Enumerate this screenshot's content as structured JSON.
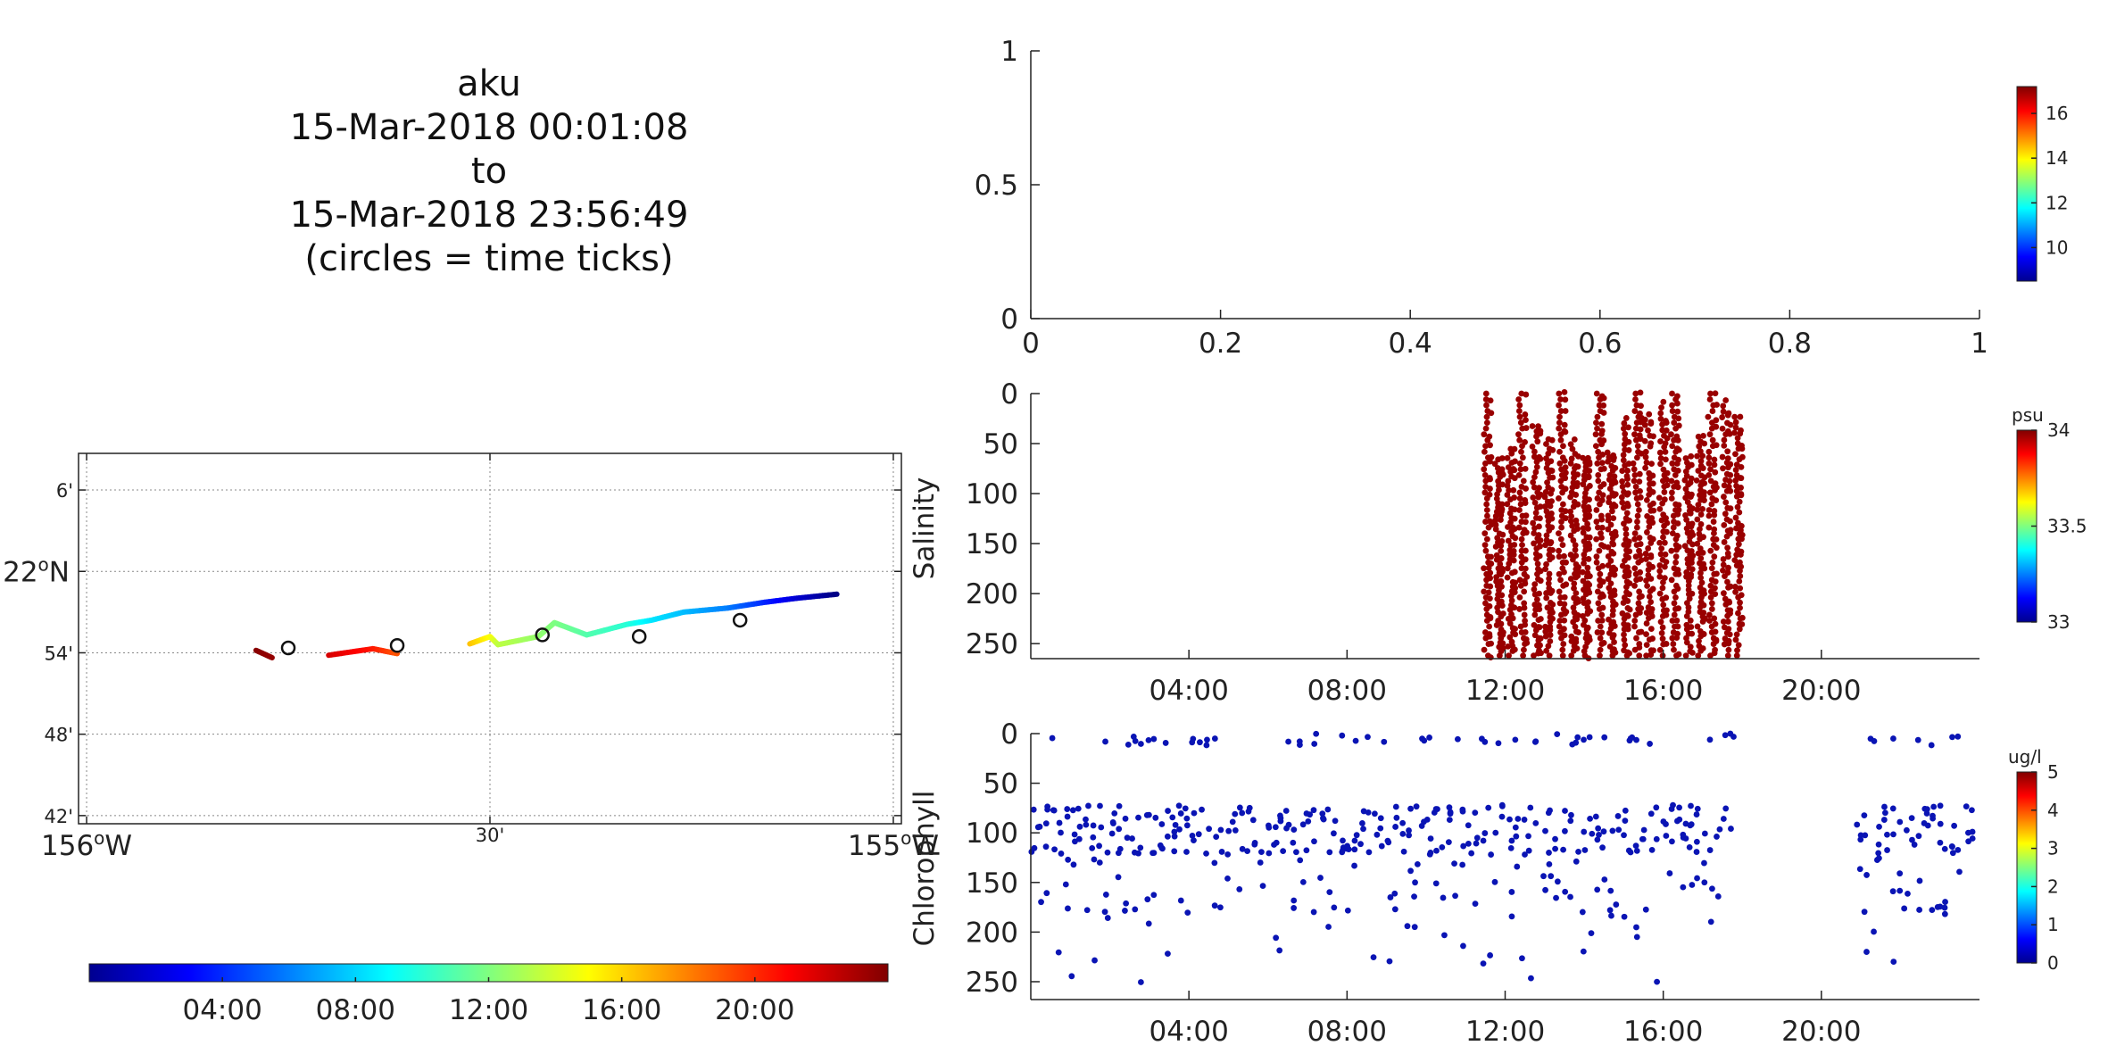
{
  "title": {
    "lines": [
      "aku",
      "15-Mar-2018 00:01:08",
      "to",
      "15-Mar-2018 23:56:49",
      "(circles = time ticks)"
    ]
  },
  "map": {
    "lat_ticks": [
      {
        "value": 22.1,
        "label": "6'",
        "major": false
      },
      {
        "value": 22.0,
        "label": "22°N",
        "major": true
      },
      {
        "value": 21.9,
        "label": "54'",
        "major": false
      },
      {
        "value": 21.8,
        "label": "48'",
        "major": false
      },
      {
        "value": 21.7,
        "label": "42'",
        "major": false
      }
    ],
    "lon_ticks": [
      {
        "value": -156.0,
        "label": "156°W",
        "major": true
      },
      {
        "value": -155.5,
        "label": "30'",
        "major": false
      },
      {
        "value": -155.0,
        "label": "155°W",
        "major": true
      }
    ],
    "xlim": [
      -156.01,
      -154.99
    ],
    "ylim": [
      21.69,
      22.145
    ],
    "track": [
      {
        "lon": -155.79,
        "lat": 21.903,
        "hour": 23.8
      },
      {
        "lon": -155.77,
        "lat": 21.894,
        "hour": 23.5
      },
      {
        "lon": -155.7,
        "lat": 21.897,
        "hour": 22.0
      },
      {
        "lon": -155.645,
        "lat": 21.905,
        "hour": 20.5
      },
      {
        "lon": -155.615,
        "lat": 21.899,
        "hour": 19.0
      },
      {
        "lon": -155.525,
        "lat": 21.911,
        "hour": 16.5
      },
      {
        "lon": -155.5,
        "lat": 21.92,
        "hour": 15.0
      },
      {
        "lon": -155.49,
        "lat": 21.91,
        "hour": 13.5
      },
      {
        "lon": -155.44,
        "lat": 21.92,
        "hour": 12.5
      },
      {
        "lon": -155.42,
        "lat": 21.937,
        "hour": 12.0
      },
      {
        "lon": -155.38,
        "lat": 21.922,
        "hour": 11.0
      },
      {
        "lon": -155.33,
        "lat": 21.935,
        "hour": 10.0
      },
      {
        "lon": -155.3,
        "lat": 21.94,
        "hour": 8.5
      },
      {
        "lon": -155.26,
        "lat": 21.95,
        "hour": 7.5
      },
      {
        "lon": -155.205,
        "lat": 21.955,
        "hour": 6.0
      },
      {
        "lon": -155.16,
        "lat": 21.962,
        "hour": 4.0
      },
      {
        "lon": -155.12,
        "lat": 21.967,
        "hour": 2.0
      },
      {
        "lon": -155.07,
        "lat": 21.972,
        "hour": 0.1
      }
    ],
    "circles": [
      {
        "lon": -155.19,
        "lat": 21.94
      },
      {
        "lon": -155.315,
        "lat": 21.92
      },
      {
        "lon": -155.435,
        "lat": 21.922
      },
      {
        "lon": -155.615,
        "lat": 21.909
      },
      {
        "lon": -155.75,
        "lat": 21.906
      }
    ]
  },
  "time_colorbar": {
    "range_hours": [
      0,
      24
    ],
    "ticks": [
      {
        "hour": 4,
        "label": "04:00"
      },
      {
        "hour": 8,
        "label": "08:00"
      },
      {
        "hour": 12,
        "label": "12:00"
      },
      {
        "hour": 16,
        "label": "16:00"
      },
      {
        "hour": 20,
        "label": "20:00"
      }
    ]
  },
  "temp_panel": {
    "xlim": [
      0,
      1
    ],
    "ylim": [
      0,
      1
    ],
    "x_ticks": [
      "0",
      "0.2",
      "0.4",
      "0.6",
      "0.8",
      "1"
    ],
    "y_ticks": [
      "0",
      "0.5",
      "1"
    ],
    "colorbar": {
      "range": [
        8.5,
        17.2
      ],
      "ticks": [
        "10",
        "12",
        "14",
        "16"
      ],
      "unit": ""
    }
  },
  "salinity_panel": {
    "ylabel": "Salinity",
    "xlim_hours": [
      0,
      24
    ],
    "ylim_depth": [
      265,
      0
    ],
    "y_ticks": [
      "0",
      "50",
      "100",
      "150",
      "200",
      "250"
    ],
    "x_ticks": [
      {
        "hour": 4,
        "label": "04:00"
      },
      {
        "hour": 8,
        "label": "08:00"
      },
      {
        "hour": 12,
        "label": "12:00"
      },
      {
        "hour": 16,
        "label": "16:00"
      },
      {
        "hour": 20,
        "label": "20:00"
      }
    ],
    "dive_times": [
      11.5,
      11.8,
      12.1,
      12.4,
      12.75,
      13.05,
      13.4,
      13.7,
      14.0,
      14.35,
      14.65,
      15.0,
      15.3,
      15.6,
      15.95,
      16.25,
      16.6,
      16.9,
      17.2,
      17.55,
      17.85
    ],
    "point_color": "#990000",
    "colorbar": {
      "range": [
        33.0,
        34.0
      ],
      "ticks": [
        "33",
        "33.5",
        "34"
      ],
      "unit": "psu"
    }
  },
  "chlorophyll_panel": {
    "ylabel": "Chlorophyll",
    "xlim_hours": [
      0,
      24
    ],
    "ylim_depth": [
      268,
      0
    ],
    "y_ticks": [
      "0",
      "50",
      "100",
      "150",
      "200",
      "250"
    ],
    "x_ticks": [
      {
        "hour": 4,
        "label": "04:00"
      },
      {
        "hour": 8,
        "label": "08:00"
      },
      {
        "hour": 12,
        "label": "12:00"
      },
      {
        "hour": 16,
        "label": "16:00"
      },
      {
        "hour": 20,
        "label": "20:00"
      }
    ],
    "data_segments": [
      [
        0,
        17.9
      ],
      [
        20.9,
        24
      ]
    ],
    "point_color": "#0a14b4",
    "colorbar": {
      "range": [
        0,
        5
      ],
      "ticks": [
        "0",
        "1",
        "2",
        "3",
        "4",
        "5"
      ],
      "unit": "ug/l"
    }
  },
  "chart_data": [
    {
      "type": "scatter",
      "title": "aku 15-Mar-2018 00:01:08 to 15-Mar-2018 23:56:49 (circles = time ticks)",
      "xlabel": "",
      "ylabel": "",
      "xlim": [
        -156.01,
        -154.99
      ],
      "ylim": [
        21.69,
        22.145
      ],
      "grid": true,
      "note_source": "map track; color encodes time of day",
      "x": [
        -155.79,
        -155.7,
        -155.615,
        -155.5,
        -155.42,
        -155.33,
        -155.26,
        -155.16,
        -155.07
      ],
      "y": [
        21.903,
        21.897,
        21.899,
        21.92,
        21.937,
        21.935,
        21.95,
        21.962,
        21.972
      ]
    },
    {
      "type": "scatter",
      "title": "",
      "xlabel": "",
      "ylabel": "",
      "xlim": [
        0,
        1
      ],
      "ylim": [
        0,
        1
      ],
      "series": []
    },
    {
      "type": "scatter",
      "title": "",
      "xlabel": "",
      "ylabel": "Salinity",
      "xlim": [
        "00:00",
        "24:00"
      ],
      "ylim": [
        265,
        0
      ],
      "series": [
        {
          "name": "",
          "x_hours": [
            11.5,
            11.8,
            12.1,
            12.4,
            12.75,
            13.05,
            13.4,
            13.7,
            14.0,
            14.35,
            14.65,
            15.0,
            15.3,
            15.6,
            15.95,
            16.25,
            16.6,
            16.9,
            17.2,
            17.55,
            17.85
          ],
          "depth_range": [
            0,
            262
          ]
        }
      ]
    },
    {
      "type": "scatter",
      "title": "",
      "xlabel": "",
      "ylabel": "Chlorophyll",
      "xlim": [
        "00:00",
        "24:00"
      ],
      "ylim": [
        268,
        0
      ],
      "series": [
        {
          "name": "",
          "x_hours_range": [
            [
              0,
              17.9
            ],
            [
              20.9,
              24
            ]
          ],
          "typical_depth": 95
        }
      ]
    }
  ]
}
